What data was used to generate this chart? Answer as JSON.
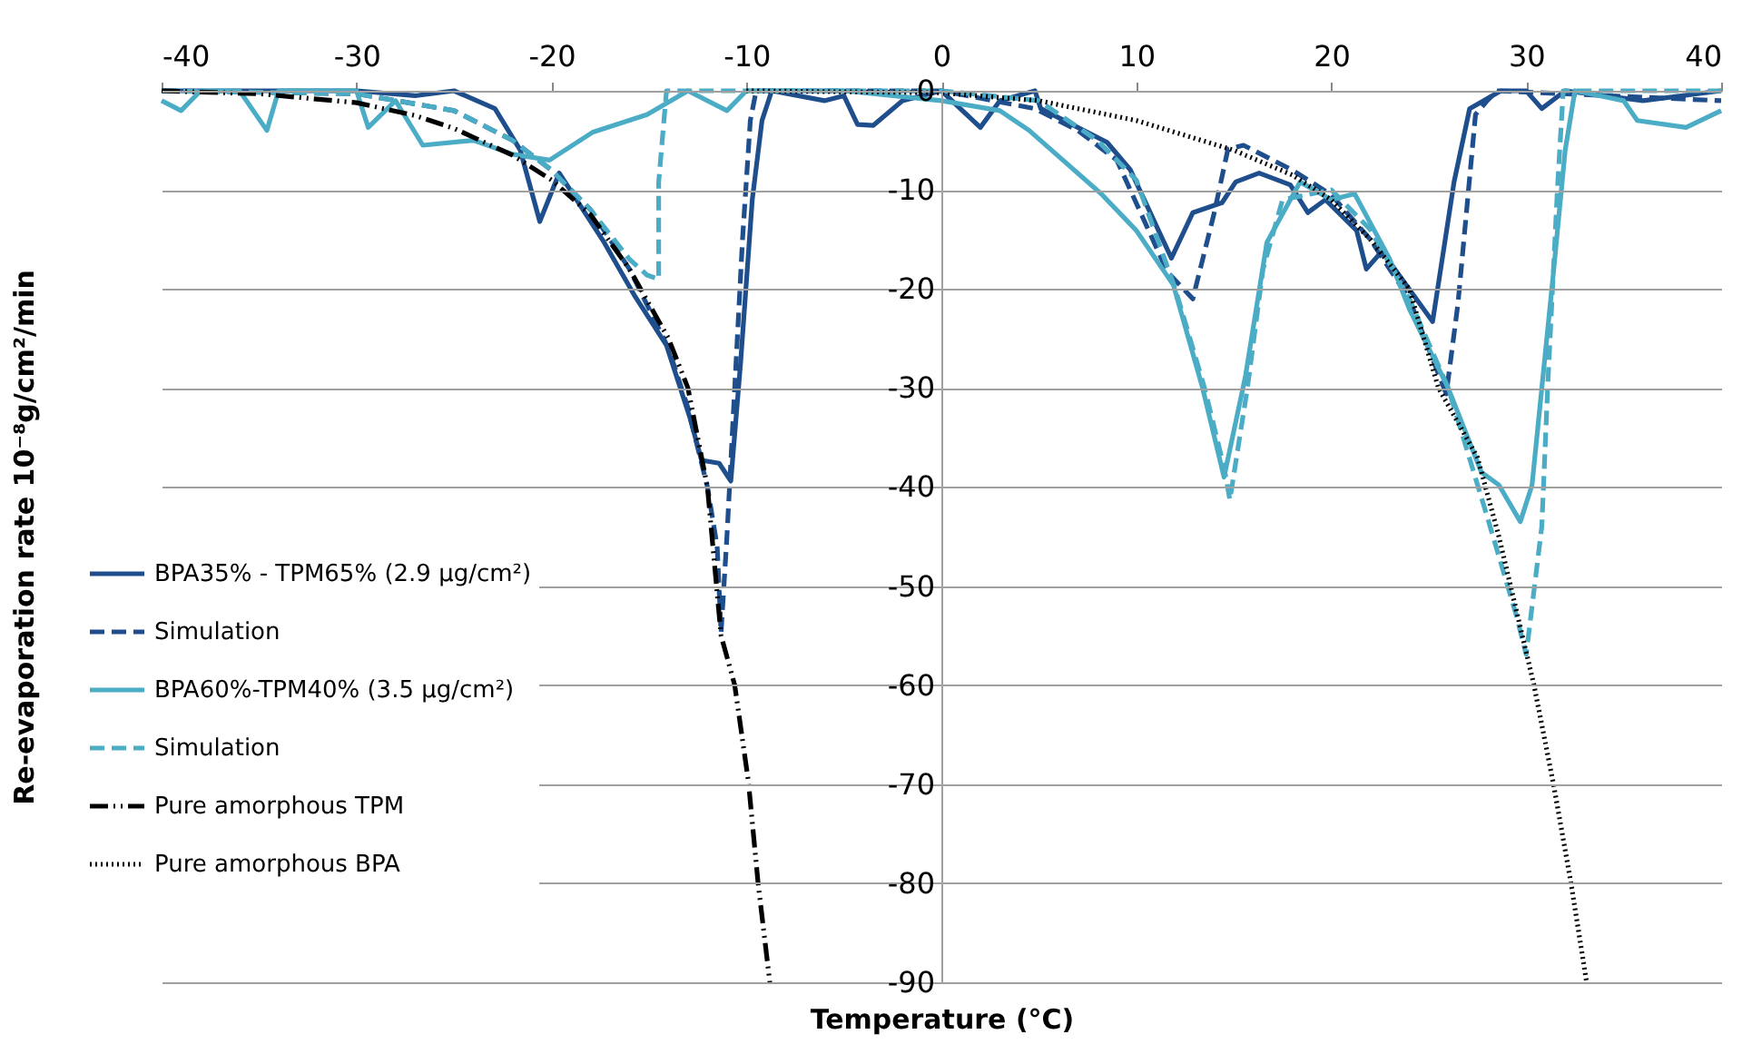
{
  "chart_data": {
    "type": "line",
    "xlabel": "Temperature (°C)",
    "ylabel": "Re-evaporation rate 10⁻⁸g/cm²/min",
    "xlim": [
      -40,
      40
    ],
    "xticks": [
      -40,
      -30,
      -20,
      -10,
      0,
      10,
      20,
      30,
      40
    ],
    "ylim": [
      -90,
      0
    ],
    "yticks": [
      0,
      -10,
      -20,
      -30,
      -40,
      -50,
      -60,
      -70,
      -80,
      -90
    ],
    "grid": "y",
    "legend": "left",
    "series": [
      {
        "name": "BPA35% - TPM65% (2.9 μg/cm²)",
        "color": "#1f4e8c",
        "line_style": "solid",
        "x": [
          -40,
          -35,
          -30,
          -27,
          -25,
          -22.9,
          -21.6,
          -20.6,
          -19.6,
          -17.3,
          -15.7,
          -14.1,
          -12.9,
          -12.3,
          -11.4,
          -10.8,
          -10.3,
          -9.7,
          -9.2,
          -8.7,
          -6,
          -5,
          -4.3,
          -3.5,
          -2,
          0,
          2,
          3,
          4.8,
          5.1,
          7,
          8.5,
          9.7,
          11.8,
          12.9,
          14.4,
          15.1,
          16.3,
          17.9,
          18.8,
          19.7,
          21.3,
          21.8,
          22.6,
          25.2,
          26.3,
          27.1,
          28.7,
          30,
          30.8,
          32,
          36,
          40
        ],
        "values": [
          0,
          0,
          0,
          -0.5,
          0,
          -1.8,
          -6,
          -13.2,
          -8.3,
          -15.3,
          -20.8,
          -25.7,
          -33,
          -37.3,
          -37.6,
          -39.4,
          -27.5,
          -11,
          -3,
          0,
          -1,
          -0.5,
          -3.4,
          -3.5,
          -1,
          0,
          -3.7,
          -1,
          0,
          -1.8,
          -3.7,
          -5.2,
          -8,
          -16.9,
          -12.3,
          -11.3,
          -9.2,
          -8.3,
          -9.5,
          -12.3,
          -11,
          -14.1,
          -18,
          -16.2,
          -23.3,
          -9.2,
          -1.8,
          0,
          0,
          -1.8,
          0,
          -1,
          0
        ]
      },
      {
        "name": "Simulation",
        "color": "#1f4e8c",
        "line_style": "dashed",
        "x": [
          -40,
          -30,
          -25,
          -22,
          -20,
          -18,
          -16,
          -14,
          -13,
          -12,
          -11.5,
          -11.3,
          -11,
          -10.6,
          -10.2,
          -9.8,
          -9.5,
          0,
          4.8,
          7,
          9,
          11.6,
          12.9,
          14.0,
          14.7,
          15.5,
          18,
          20,
          22,
          24,
          25.9,
          26.5,
          27.4,
          28,
          28.5,
          40
        ],
        "values": [
          0,
          -0.3,
          -2,
          -5,
          -8,
          -12,
          -18,
          -26,
          -32,
          -40,
          -46,
          -54.7,
          -45,
          -30,
          -15,
          -3,
          0,
          0,
          -1.8,
          -4,
          -7,
          -18.3,
          -21,
          -12.3,
          -5.9,
          -5.5,
          -8,
          -10.5,
          -15,
          -21,
          -30.6,
          -21.5,
          -2.4,
          -1,
          0,
          -1
        ]
      },
      {
        "name": "BPA60%-TPM40% (3.5 μg/cm²)",
        "color": "#4bacc6",
        "line_style": "solid",
        "x": [
          -40,
          -39,
          -38,
          -36,
          -34.6,
          -34,
          -30,
          -29.4,
          -28,
          -26.6,
          -24,
          -22,
          -20.1,
          -17.9,
          -15.1,
          -13,
          -11,
          -10,
          -5,
          0,
          3,
          4.5,
          8.2,
          10,
          11.9,
          13.4,
          14.5,
          15.6,
          16.7,
          18.4,
          20,
          21.2,
          23,
          24,
          26,
          27.7,
          28.6,
          29.7,
          30.3,
          31.4,
          32,
          32.5,
          35,
          35.7,
          38.2,
          40
        ],
        "values": [
          -1,
          -2,
          0,
          0,
          -4,
          0,
          0,
          -3.7,
          -1,
          -5.5,
          -5,
          -6.4,
          -7,
          -4.2,
          -2.4,
          0,
          -2,
          0,
          0,
          -1,
          -2,
          -4,
          -10.4,
          -14.1,
          -19.6,
          -30,
          -39,
          -28.8,
          -15.3,
          -9.2,
          -11,
          -10.4,
          -17,
          -22,
          -30,
          -38.5,
          -39.8,
          -43.5,
          -39.8,
          -18.3,
          -6,
          0,
          -1,
          -3,
          -3.7,
          -2
        ]
      },
      {
        "name": "Simulation",
        "color": "#4bacc6",
        "line_style": "dashed",
        "x": [
          -40,
          -30,
          -25,
          -22,
          -20,
          -18,
          -16,
          -15.1,
          -14.5,
          -14.5,
          -14.1,
          0,
          5,
          8,
          10,
          12,
          13.5,
          14.5,
          14.8,
          15.7,
          16.5,
          17.5,
          20,
          22,
          24,
          26,
          28,
          29.5,
          30.0,
          30.8,
          31.1,
          31.6,
          31.9,
          40
        ],
        "values": [
          0,
          -0.3,
          -2,
          -5,
          -8,
          -12,
          -17,
          -18.6,
          -19,
          -9.2,
          0,
          0,
          -1,
          -5,
          -9,
          -20,
          -30,
          -38,
          -41.3,
          -30,
          -18,
          -11,
          -10,
          -14,
          -21,
          -30,
          -43,
          -53,
          -56.9,
          -44,
          -30,
          -10,
          0,
          0
        ]
      },
      {
        "name": "Pure amorphous TPM",
        "color": "#000000",
        "line_style": "dashdot",
        "x": [
          -40,
          -35,
          -30,
          -27,
          -25,
          -22,
          -20,
          -18,
          -16,
          -14,
          -13,
          -12,
          -11.3,
          -10.6,
          -9.9,
          -9.4,
          -8.8
        ],
        "values": [
          0,
          -0.3,
          -1.2,
          -2.5,
          -3.8,
          -6.5,
          -9,
          -12.5,
          -18,
          -25,
          -30,
          -40,
          -55,
          -60,
          -69.7,
          -80,
          -90
        ]
      },
      {
        "name": "Pure amorphous BPA",
        "color": "#000000",
        "line_style": "dotted",
        "x": [
          -10,
          0,
          5,
          10,
          15,
          18,
          20,
          22,
          24,
          25.5,
          27.5,
          28.6,
          30.4,
          31.4,
          32.3,
          33.1
        ],
        "values": [
          0,
          -0.2,
          -1,
          -3,
          -6,
          -8.5,
          -11,
          -15,
          -20,
          -30,
          -37,
          -45,
          -60,
          -70,
          -80,
          -90
        ]
      }
    ]
  }
}
